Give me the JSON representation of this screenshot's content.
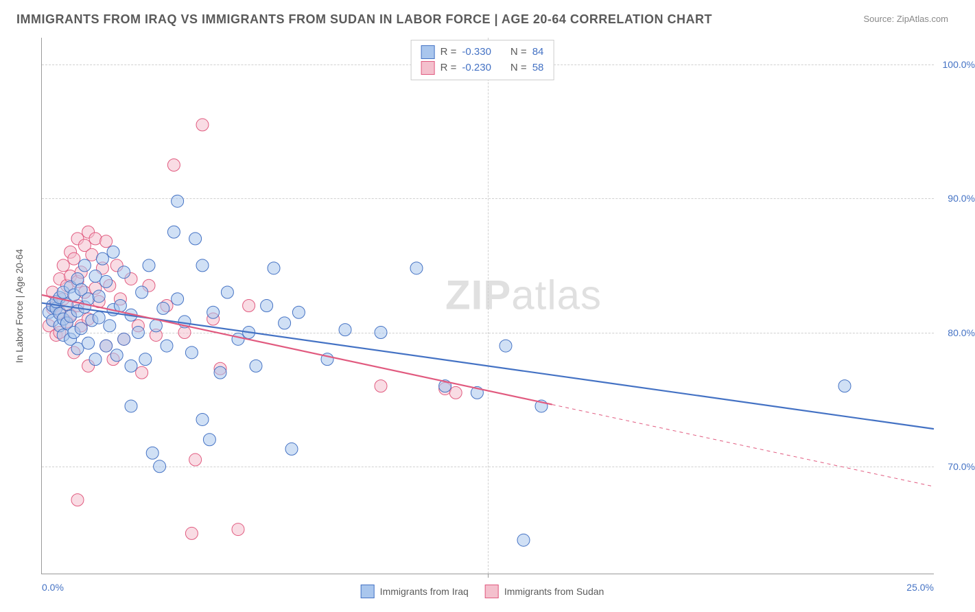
{
  "title": "IMMIGRANTS FROM IRAQ VS IMMIGRANTS FROM SUDAN IN LABOR FORCE | AGE 20-64 CORRELATION CHART",
  "source": "Source: ZipAtlas.com",
  "watermark_bold": "ZIP",
  "watermark_light": "atlas",
  "y_axis_title": "In Labor Force | Age 20-64",
  "chart": {
    "type": "scatter",
    "xlim": [
      0,
      25
    ],
    "ylim": [
      62,
      102
    ],
    "background_color": "#ffffff",
    "grid_color": "#d0d0d0",
    "grid_dash": "4,4",
    "x_ticks": [
      0,
      25
    ],
    "x_tick_labels": [
      "0.0%",
      "25.0%"
    ],
    "x_gridlines": [
      12.5
    ],
    "y_ticks": [
      70,
      80,
      90,
      100
    ],
    "y_tick_labels": [
      "70.0%",
      "80.0%",
      "90.0%",
      "100.0%"
    ],
    "y_gridlines": [
      70,
      80,
      90,
      100
    ],
    "marker_radius": 9,
    "marker_opacity": 0.55,
    "line_width": 2.2,
    "axis_label_color": "#4472c4",
    "axis_label_fontsize": 14,
    "title_fontsize": 18,
    "title_color": "#5a5a5a"
  },
  "series": [
    {
      "name": "Immigrants from Iraq",
      "color_fill": "#a9c6ed",
      "color_stroke": "#4472c4",
      "R": "-0.330",
      "N": "84",
      "trend": {
        "x1": 0,
        "y1": 82.2,
        "x2": 25,
        "y2": 72.8,
        "solid_until_x": 25
      },
      "points": [
        [
          0.2,
          81.5
        ],
        [
          0.3,
          82.0
        ],
        [
          0.3,
          80.9
        ],
        [
          0.4,
          81.8
        ],
        [
          0.4,
          82.3
        ],
        [
          0.5,
          80.5
        ],
        [
          0.5,
          81.4
        ],
        [
          0.5,
          82.6
        ],
        [
          0.6,
          83.0
        ],
        [
          0.6,
          81.0
        ],
        [
          0.6,
          79.8
        ],
        [
          0.7,
          82.1
        ],
        [
          0.7,
          80.7
        ],
        [
          0.8,
          83.4
        ],
        [
          0.8,
          81.2
        ],
        [
          0.8,
          79.5
        ],
        [
          0.9,
          82.8
        ],
        [
          0.9,
          80.0
        ],
        [
          1.0,
          84.0
        ],
        [
          1.0,
          81.6
        ],
        [
          1.0,
          78.8
        ],
        [
          1.1,
          83.2
        ],
        [
          1.1,
          80.3
        ],
        [
          1.2,
          85.0
        ],
        [
          1.2,
          81.9
        ],
        [
          1.3,
          79.2
        ],
        [
          1.3,
          82.5
        ],
        [
          1.4,
          80.9
        ],
        [
          1.5,
          84.2
        ],
        [
          1.5,
          78.0
        ],
        [
          1.6,
          82.7
        ],
        [
          1.6,
          81.1
        ],
        [
          1.7,
          85.5
        ],
        [
          1.8,
          79.0
        ],
        [
          1.8,
          83.8
        ],
        [
          1.9,
          80.5
        ],
        [
          2.0,
          81.7
        ],
        [
          2.0,
          86.0
        ],
        [
          2.1,
          78.3
        ],
        [
          2.2,
          82.0
        ],
        [
          2.3,
          79.5
        ],
        [
          2.3,
          84.5
        ],
        [
          2.5,
          77.5
        ],
        [
          2.5,
          74.5
        ],
        [
          2.5,
          81.3
        ],
        [
          2.7,
          80.0
        ],
        [
          2.8,
          83.0
        ],
        [
          2.9,
          78.0
        ],
        [
          3.0,
          85.0
        ],
        [
          3.1,
          71.0
        ],
        [
          3.2,
          80.5
        ],
        [
          3.3,
          70.0
        ],
        [
          3.4,
          81.8
        ],
        [
          3.5,
          79.0
        ],
        [
          3.7,
          87.5
        ],
        [
          3.8,
          89.8
        ],
        [
          3.8,
          82.5
        ],
        [
          4.0,
          80.8
        ],
        [
          4.2,
          78.5
        ],
        [
          4.3,
          87.0
        ],
        [
          4.5,
          85.0
        ],
        [
          4.5,
          73.5
        ],
        [
          4.7,
          72.0
        ],
        [
          4.8,
          81.5
        ],
        [
          5.0,
          77.0
        ],
        [
          5.2,
          83.0
        ],
        [
          5.5,
          79.5
        ],
        [
          5.8,
          80.0
        ],
        [
          6.0,
          77.5
        ],
        [
          6.3,
          82.0
        ],
        [
          6.5,
          84.8
        ],
        [
          6.8,
          80.7
        ],
        [
          7.0,
          71.3
        ],
        [
          7.2,
          81.5
        ],
        [
          8.0,
          78.0
        ],
        [
          8.5,
          80.2
        ],
        [
          9.5,
          80.0
        ],
        [
          10.5,
          84.8
        ],
        [
          11.3,
          76.0
        ],
        [
          12.2,
          75.5
        ],
        [
          13.0,
          79.0
        ],
        [
          13.5,
          64.5
        ],
        [
          14.0,
          74.5
        ],
        [
          22.5,
          76.0
        ]
      ]
    },
    {
      "name": "Immigrants from Sudan",
      "color_fill": "#f4c0cd",
      "color_stroke": "#e15a7f",
      "R": "-0.230",
      "N": "58",
      "trend": {
        "x1": 0,
        "y1": 82.8,
        "x2": 25,
        "y2": 68.5,
        "solid_until_x": 14.3
      },
      "points": [
        [
          0.2,
          80.5
        ],
        [
          0.3,
          81.8
        ],
        [
          0.3,
          83.0
        ],
        [
          0.4,
          82.0
        ],
        [
          0.4,
          79.8
        ],
        [
          0.5,
          84.0
        ],
        [
          0.5,
          81.5
        ],
        [
          0.5,
          80.0
        ],
        [
          0.6,
          85.0
        ],
        [
          0.6,
          82.5
        ],
        [
          0.7,
          83.5
        ],
        [
          0.7,
          80.8
        ],
        [
          0.8,
          86.0
        ],
        [
          0.8,
          84.2
        ],
        [
          0.8,
          81.3
        ],
        [
          0.9,
          78.5
        ],
        [
          0.9,
          85.5
        ],
        [
          1.0,
          83.8
        ],
        [
          1.0,
          82.0
        ],
        [
          1.0,
          87.0
        ],
        [
          1.0,
          67.5
        ],
        [
          1.1,
          84.5
        ],
        [
          1.1,
          80.5
        ],
        [
          1.2,
          86.5
        ],
        [
          1.2,
          83.0
        ],
        [
          1.3,
          87.5
        ],
        [
          1.3,
          81.0
        ],
        [
          1.3,
          77.5
        ],
        [
          1.4,
          85.8
        ],
        [
          1.5,
          83.3
        ],
        [
          1.5,
          87.0
        ],
        [
          1.6,
          82.3
        ],
        [
          1.7,
          84.8
        ],
        [
          1.8,
          79.0
        ],
        [
          1.8,
          86.8
        ],
        [
          1.9,
          83.5
        ],
        [
          2.0,
          78.0
        ],
        [
          2.1,
          85.0
        ],
        [
          2.2,
          82.5
        ],
        [
          2.3,
          79.5
        ],
        [
          2.5,
          84.0
        ],
        [
          2.7,
          80.5
        ],
        [
          2.8,
          77.0
        ],
        [
          3.0,
          83.5
        ],
        [
          3.2,
          79.8
        ],
        [
          3.5,
          82.0
        ],
        [
          3.7,
          92.5
        ],
        [
          4.0,
          80.0
        ],
        [
          4.2,
          65.0
        ],
        [
          4.3,
          70.5
        ],
        [
          4.5,
          95.5
        ],
        [
          4.8,
          81.0
        ],
        [
          5.0,
          77.3
        ],
        [
          5.5,
          65.3
        ],
        [
          5.8,
          82.0
        ],
        [
          9.5,
          76.0
        ],
        [
          11.3,
          75.8
        ],
        [
          11.6,
          75.5
        ]
      ]
    }
  ],
  "legend_labels": {
    "R": "R =",
    "N": "N ="
  }
}
